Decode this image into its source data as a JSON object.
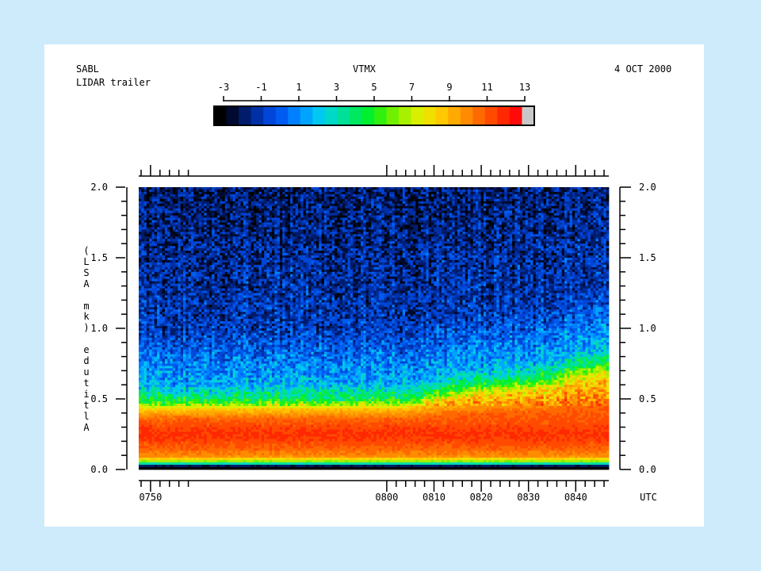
{
  "header": {
    "site": "SABL",
    "instrument": "LIDAR trailer",
    "variable": "VTMX",
    "date": "4 OCT 2000"
  },
  "colorbar": {
    "ticks": [
      "-3",
      "-1",
      "1",
      "3",
      "5",
      "7",
      "9",
      "11",
      "13"
    ],
    "min": -3,
    "max": 13,
    "colors": [
      "#000000",
      "#000a2e",
      "#001c6b",
      "#0030a6",
      "#0046d8",
      "#005cf0",
      "#0080ff",
      "#00a4ff",
      "#00c8f0",
      "#00d8c8",
      "#00e098",
      "#00e860",
      "#00f030",
      "#30f010",
      "#70f000",
      "#a8f000",
      "#d8f000",
      "#f0e000",
      "#ffc800",
      "#ffaa00",
      "#ff8c00",
      "#ff6a00",
      "#ff4a00",
      "#ff2800",
      "#ff0a0a",
      "#c8c8c8"
    ]
  },
  "chart_data": {
    "type": "heatmap",
    "title": "VTMX",
    "xlabel": "UTC",
    "ylabel": "Altitude (km ASL)",
    "xlim": [
      747.5,
      847.0
    ],
    "ylim": [
      0.0,
      2.0
    ],
    "x_ticks": [
      "0750",
      "0800",
      "0810",
      "0820",
      "0830",
      "0840"
    ],
    "y_ticks": [
      "0.0",
      "0.5",
      "1.0",
      "1.5",
      "2.0"
    ],
    "x_tick_values": [
      750,
      800,
      810,
      820,
      830,
      840
    ],
    "y_tick_values": [
      0.0,
      0.5,
      1.0,
      1.5,
      2.0
    ],
    "time_axis": "HHMM",
    "grid": false,
    "mixed_layer_top_km": [
      {
        "time": 747.5,
        "height": 0.46
      },
      {
        "time": 800,
        "height": 0.47
      },
      {
        "time": 805,
        "height": 0.48
      },
      {
        "time": 810,
        "height": 0.52
      },
      {
        "time": 815,
        "height": 0.55
      },
      {
        "time": 820,
        "height": 0.58
      },
      {
        "time": 825,
        "height": 0.59
      },
      {
        "time": 830,
        "height": 0.61
      },
      {
        "time": 835,
        "height": 0.63
      },
      {
        "time": 840,
        "height": 0.7
      },
      {
        "time": 847,
        "height": 0.73
      }
    ],
    "vertical_profile": [
      {
        "height_km": 0.02,
        "value": -3
      },
      {
        "height_km": 0.05,
        "value": 6
      },
      {
        "height_km": 0.09,
        "value": 10
      },
      {
        "height_km": 0.15,
        "value": 11
      },
      {
        "height_km": 0.25,
        "value": 12
      },
      {
        "height_km": 0.35,
        "value": 11
      },
      {
        "height_km": 0.42,
        "value": 9
      },
      {
        "height_km": 0.48,
        "value": 5
      },
      {
        "height_km": 0.6,
        "value": 2
      },
      {
        "height_km": 1.0,
        "value": -0.5
      },
      {
        "height_km": 2.0,
        "value": -1.5
      }
    ]
  }
}
